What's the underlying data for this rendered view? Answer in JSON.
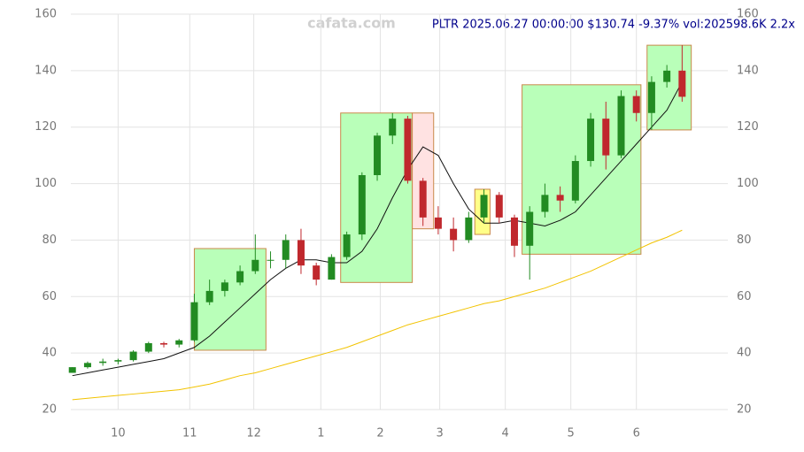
{
  "chart_data": {
    "type": "candlestick",
    "title": "PLTR 2025.06.27 00:00:00 $130.74 -9.37% vol:202598.6K 2.2x",
    "watermark": "cafata.com",
    "xlim": [
      -0.1,
      43
    ],
    "xticks": [
      {
        "value": 3.0,
        "label": "10"
      },
      {
        "value": 7.7,
        "label": "11"
      },
      {
        "value": 11.9,
        "label": "12"
      },
      {
        "value": 16.3,
        "label": "1"
      },
      {
        "value": 20.2,
        "label": "2"
      },
      {
        "value": 24.1,
        "label": "3"
      },
      {
        "value": 28.4,
        "label": "4"
      },
      {
        "value": 32.7,
        "label": "5"
      },
      {
        "value": 37.0,
        "label": "6"
      }
    ],
    "ylim": [
      20,
      160
    ],
    "yticks": [
      20,
      40,
      60,
      80,
      100,
      120,
      140,
      160
    ],
    "grid": true,
    "up_color": "#228b22",
    "down_color": "#c0282d",
    "open": [
      33,
      35,
      36.5,
      37,
      37.5,
      40.5,
      43.5,
      43,
      44.5,
      58,
      62,
      65,
      69,
      73,
      73,
      80,
      71,
      66,
      74,
      82,
      103,
      117,
      123,
      101,
      88,
      84,
      80,
      88,
      96,
      88,
      78,
      90,
      96,
      94,
      108,
      123,
      110,
      131,
      125,
      136,
      140
    ],
    "high": [
      35,
      37,
      38,
      38,
      41,
      44,
      44,
      45,
      61,
      66,
      66,
      71,
      82,
      76,
      82,
      84,
      72,
      75,
      83,
      104,
      118,
      125,
      124,
      102,
      92,
      88,
      90,
      98,
      97,
      89,
      92,
      100,
      99,
      110,
      125,
      129,
      133,
      133,
      138,
      142,
      149
    ],
    "low": [
      33,
      34.5,
      35.5,
      36,
      37,
      40,
      42,
      42,
      44,
      57,
      60,
      64,
      68,
      70,
      70,
      68,
      64,
      66,
      73,
      80,
      101,
      114,
      100,
      85,
      82,
      76,
      79,
      86,
      86,
      74,
      66,
      88,
      90,
      93,
      106,
      105,
      109,
      122,
      119,
      134,
      129
    ],
    "close": [
      35,
      36.5,
      37,
      37.5,
      40.5,
      43.5,
      43,
      44.5,
      58,
      62,
      65,
      69,
      73,
      73,
      80,
      71,
      66,
      74,
      82,
      103,
      117,
      123,
      101,
      88,
      84,
      80,
      88,
      96,
      88,
      78,
      90,
      96,
      94,
      108,
      123,
      110,
      131,
      125,
      136,
      140,
      130.74
    ],
    "lines": [
      {
        "color": "#111111",
        "values": [
          32,
          33,
          34,
          35,
          36,
          37,
          38,
          40,
          42,
          46,
          51,
          56,
          61,
          66,
          70,
          73,
          73,
          72,
          72,
          76,
          84,
          95,
          105,
          113,
          110,
          100,
          91,
          86,
          86,
          87,
          86,
          85,
          87,
          90,
          96,
          102,
          108,
          114,
          120,
          126,
          136
        ]
      },
      {
        "color": "#f2c300",
        "values": [
          23.5,
          24,
          24.5,
          25,
          25.5,
          26,
          26.5,
          27,
          28,
          29,
          30.5,
          32,
          33,
          34.5,
          36,
          37.5,
          39,
          40.5,
          42,
          44,
          46,
          48,
          50,
          51.5,
          53,
          54.5,
          56,
          57.5,
          58.5,
          60,
          61.5,
          63,
          65,
          67,
          69,
          71.5,
          74,
          76.5,
          79,
          81,
          83.5
        ]
      }
    ],
    "zones": [
      {
        "x": [
          8.0,
          12.7
        ],
        "y": [
          41,
          77
        ],
        "color": "#b9ffb9"
      },
      {
        "x": [
          17.6,
          22.3
        ],
        "y": [
          65,
          125
        ],
        "color": "#b9ffb9"
      },
      {
        "x": [
          22.3,
          23.7
        ],
        "y": [
          84,
          125
        ],
        "color": "#ffe2e2"
      },
      {
        "x": [
          26.4,
          27.4
        ],
        "y": [
          82,
          98
        ],
        "color": "#ffff88"
      },
      {
        "x": [
          29.5,
          37.3
        ],
        "y": [
          75,
          135
        ],
        "color": "#b9ffb9"
      },
      {
        "x": [
          37.7,
          40.6
        ],
        "y": [
          119,
          149
        ],
        "color": "#b9ffb9"
      }
    ]
  }
}
